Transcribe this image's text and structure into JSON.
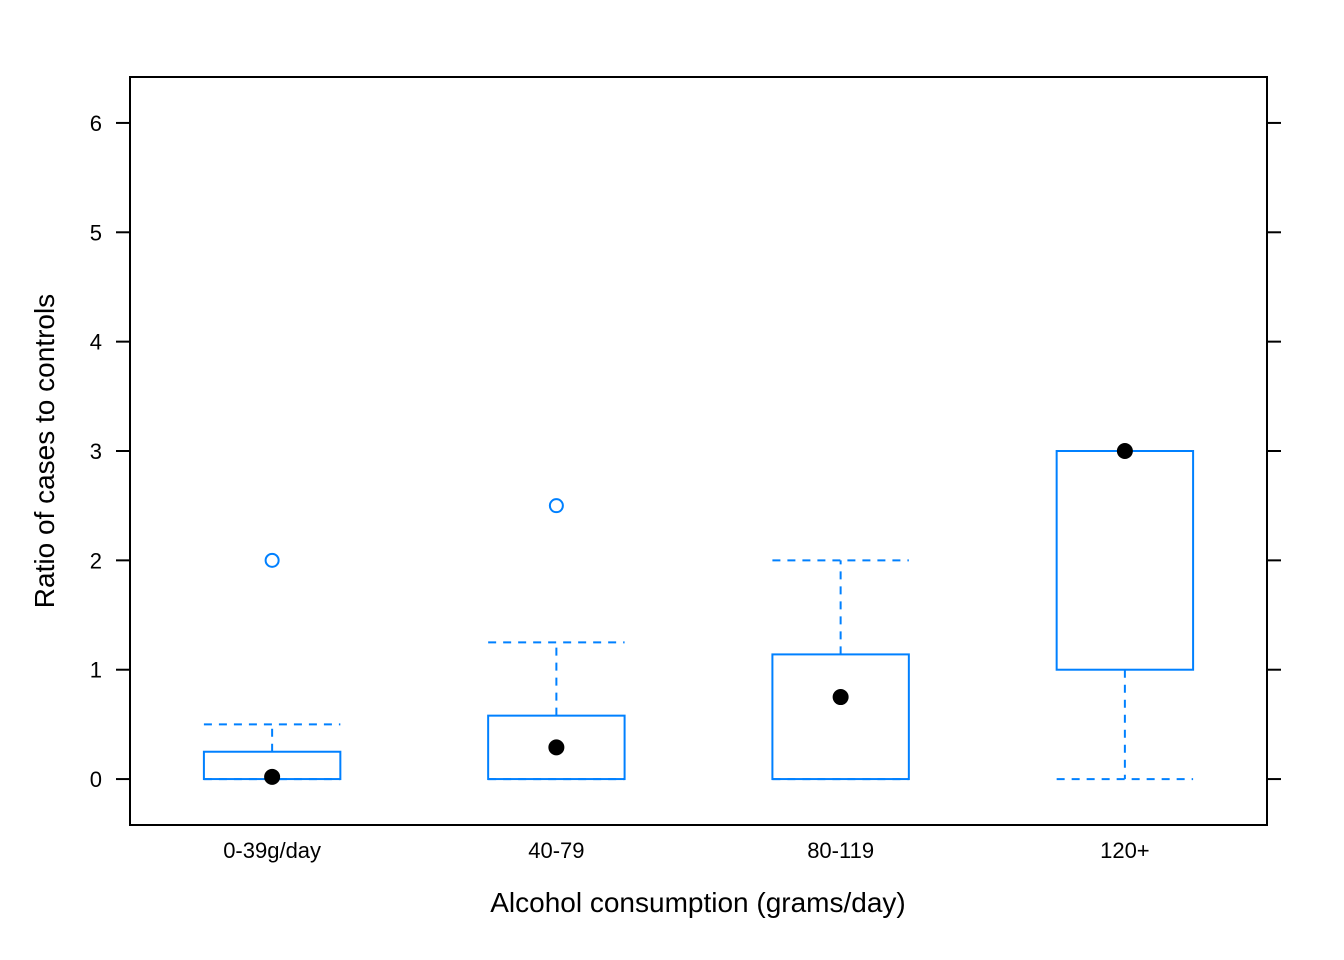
{
  "chart_data": {
    "type": "boxplot",
    "xlabel": "Alcohol consumption (grams/day)",
    "ylabel": "Ratio of cases to controls",
    "ylim": [
      -0.42,
      6.42
    ],
    "yticks": [
      0,
      1,
      2,
      3,
      4,
      5,
      6
    ],
    "categories": [
      "0-39g/day",
      "40-79",
      "80-119",
      "120+"
    ],
    "boxes": [
      {
        "category": "0-39g/day",
        "whisker_low": 0,
        "q1": 0,
        "median": 0.02,
        "q3": 0.25,
        "whisker_high": 0.5,
        "outliers": [
          2
        ]
      },
      {
        "category": "40-79",
        "whisker_low": 0,
        "q1": 0,
        "median": 0.29,
        "q3": 0.58,
        "whisker_high": 1.25,
        "outliers": [
          2.5
        ]
      },
      {
        "category": "80-119",
        "whisker_low": 0,
        "q1": 0,
        "median": 0.75,
        "q3": 1.14,
        "whisker_high": 2,
        "outliers": []
      },
      {
        "category": "120+",
        "whisker_low": 0,
        "q1": 1,
        "median": 3,
        "q3": 3,
        "whisker_high": 3,
        "outliers": []
      }
    ],
    "grid": false,
    "legend": "none",
    "colors": {
      "box": "#0080ff",
      "median": "#000000",
      "frame": "#000000"
    }
  }
}
